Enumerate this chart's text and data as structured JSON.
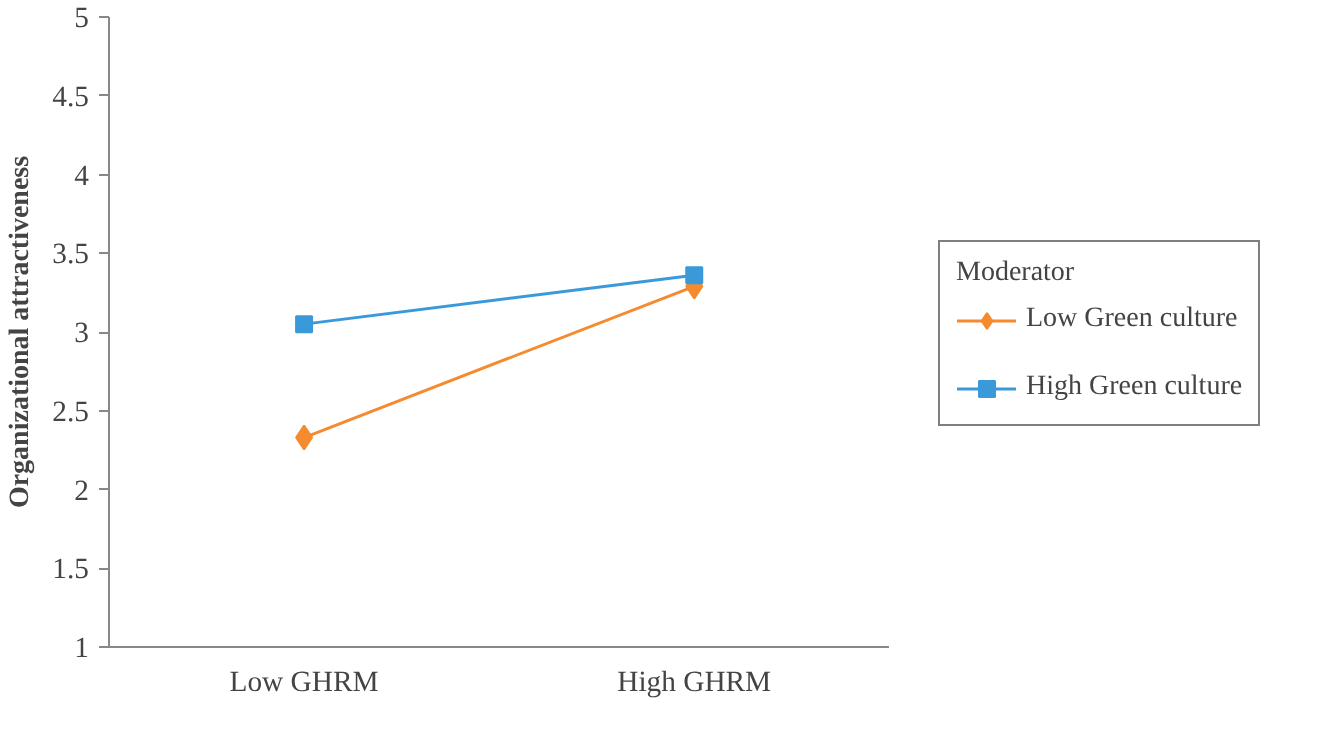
{
  "chart_data": {
    "type": "line",
    "ylabel": "Organizational attractiveness",
    "legend_title": "Moderator",
    "categories": [
      "Low GHRM",
      "High GHRM"
    ],
    "series": [
      {
        "name": "Low Green culture",
        "color": "#f58a2e",
        "values": [
          2.33,
          3.29
        ],
        "marker": "diamond"
      },
      {
        "name": "High Green culture",
        "color": "#3a9ad9",
        "values": [
          3.05,
          3.36
        ],
        "marker": "square"
      }
    ],
    "ylim": [
      1,
      5
    ],
    "yticks": [
      1,
      1.5,
      2,
      2.5,
      3,
      3.5,
      4,
      4.5,
      5
    ],
    "grid": false,
    "legend": "right",
    "line_style": "solid"
  }
}
